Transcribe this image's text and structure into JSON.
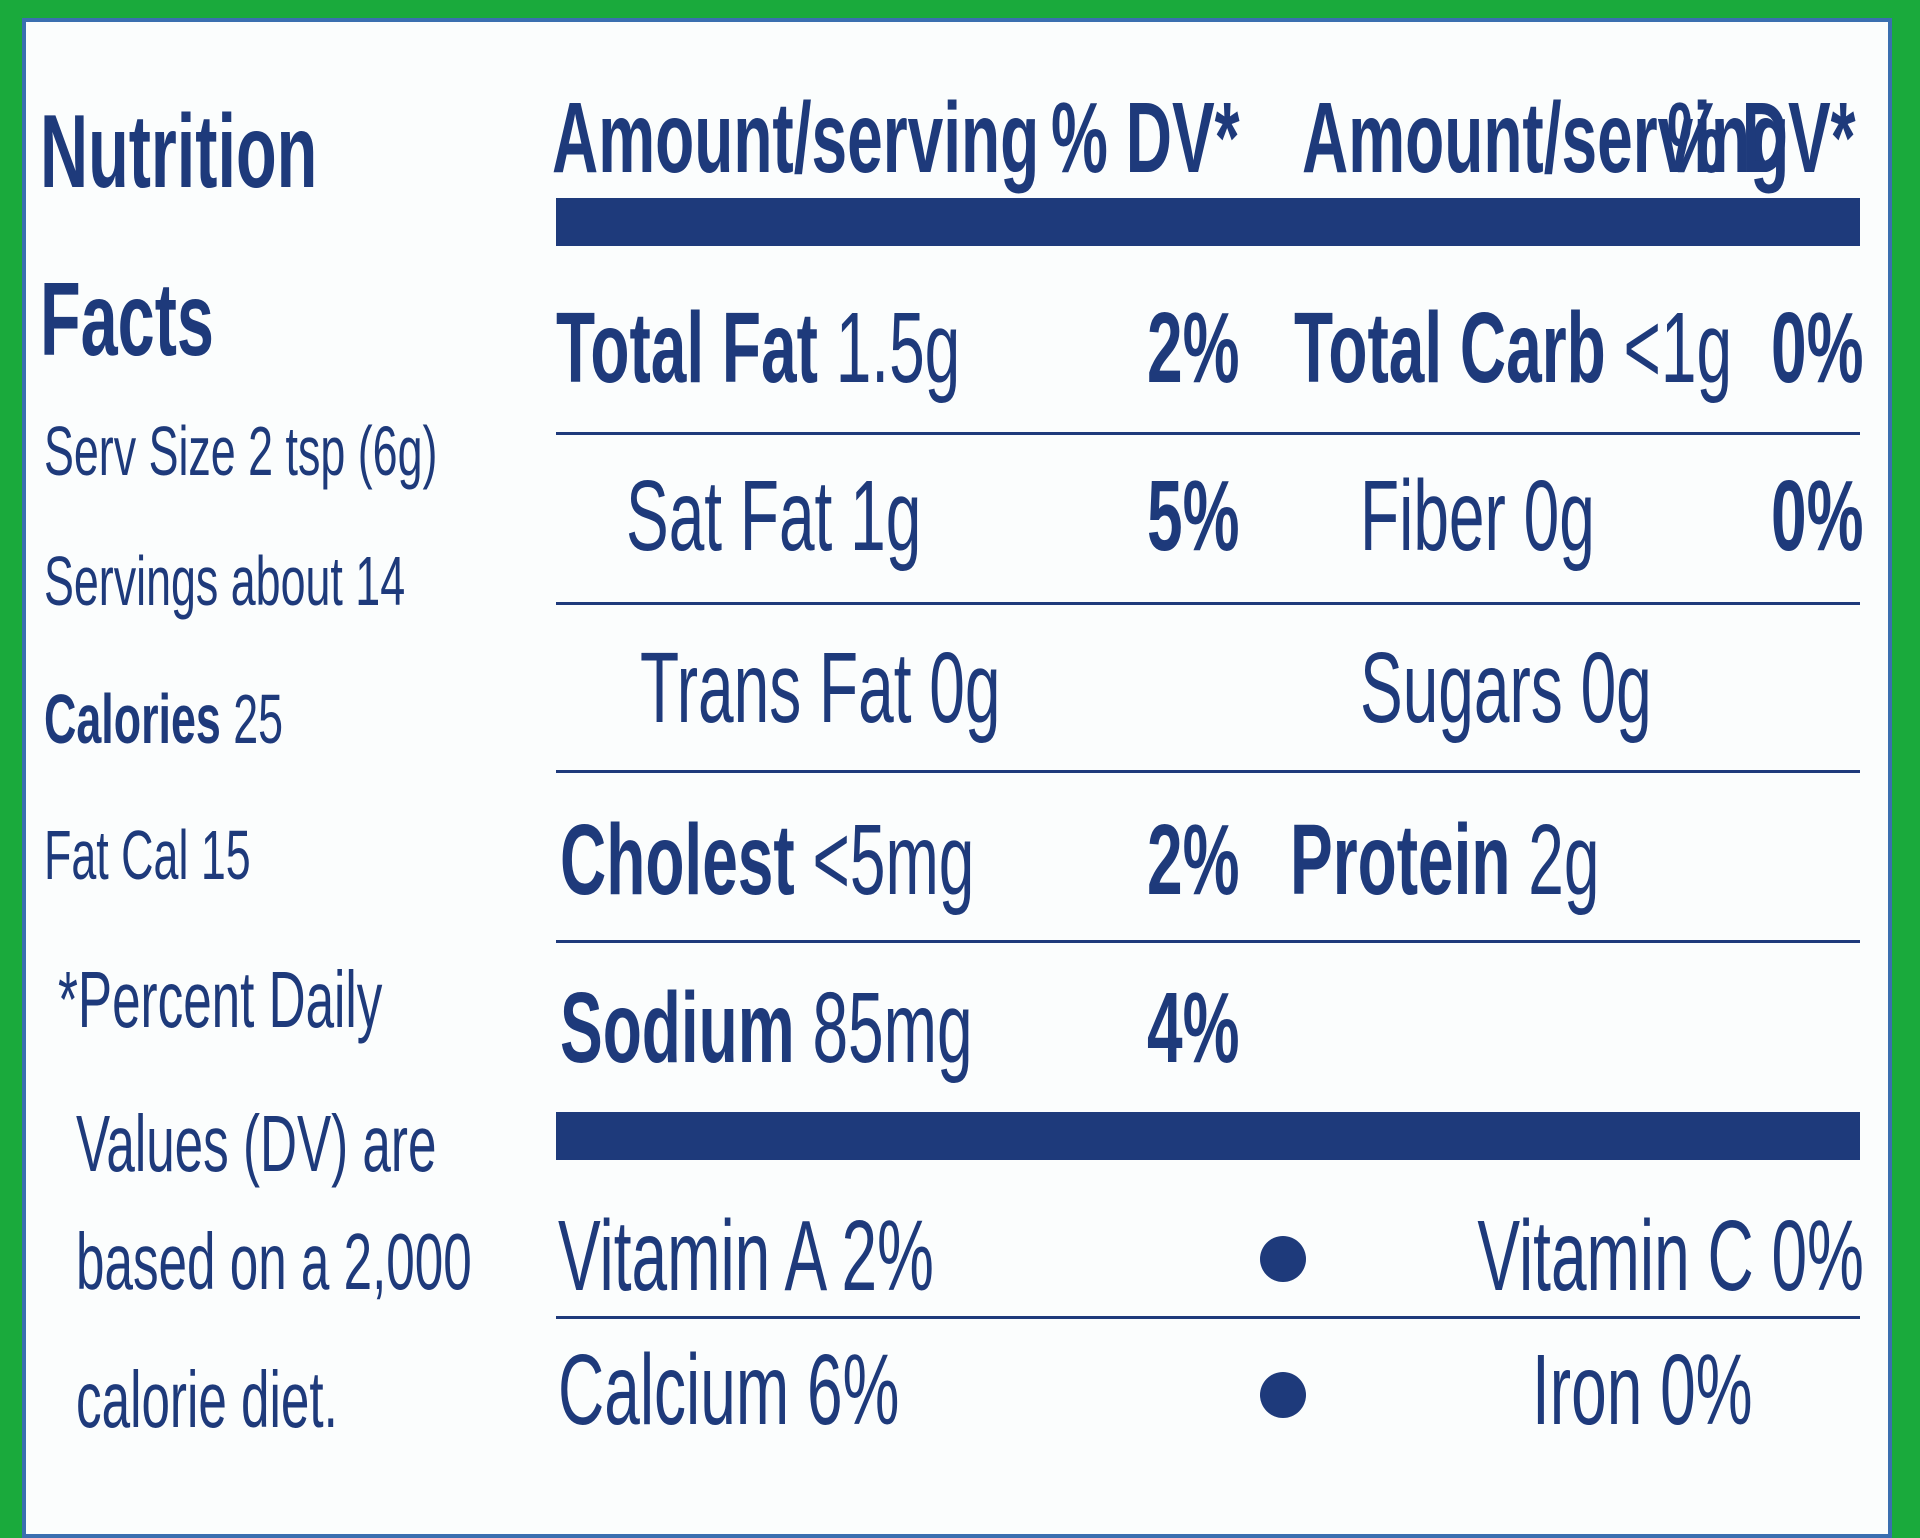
{
  "left": {
    "title_1": "Nutrition",
    "title_2": "Facts",
    "serv_size": "Serv Size 2 tsp (6g)",
    "servings": "Servings about 14",
    "calories_label": "Calories",
    "calories_value": "25",
    "fat_cal": "Fat Cal 15",
    "footnote_1": "*Percent Daily",
    "footnote_2": "Values (DV) are",
    "footnote_3": "based on a 2,000",
    "footnote_4": "calorie diet."
  },
  "header": {
    "amount_1": "Amount/serving",
    "dv_1": "% DV*",
    "amount_2": "Amount/serving",
    "dv_2": "% DV*"
  },
  "rows": {
    "total_fat_label": "Total Fat",
    "total_fat_value": "1.5g",
    "total_fat_dv": "2%",
    "total_carb_label": "Total Carb",
    "total_carb_value": "<1g",
    "total_carb_dv": "0%",
    "sat_fat": "Sat Fat 1g",
    "sat_fat_dv": "5%",
    "fiber": "Fiber 0g",
    "fiber_dv": "0%",
    "trans_fat": "Trans Fat 0g",
    "sugars": "Sugars 0g",
    "cholest_label": "Cholest",
    "cholest_value": "<5mg",
    "cholest_dv": "2%",
    "protein_label": "Protein",
    "protein_value": "2g",
    "sodium_label": "Sodium",
    "sodium_value": "85mg",
    "sodium_dv": "4%"
  },
  "vitamins": {
    "vitamin_a": "Vitamin A 2%",
    "vitamin_c": "Vitamin C 0%",
    "calcium": "Calcium 6%",
    "iron": "Iron 0%"
  }
}
